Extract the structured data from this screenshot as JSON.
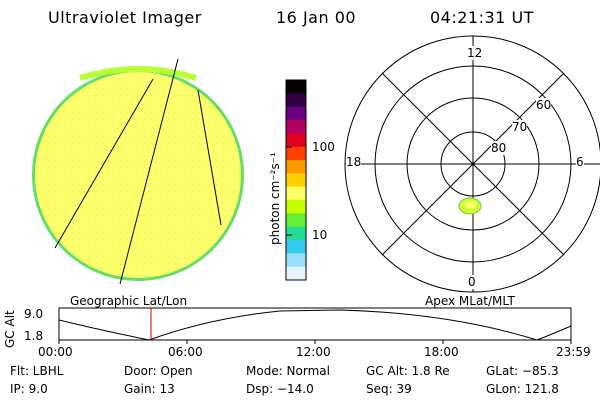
{
  "header": {
    "title": "Ultraviolet Imager",
    "date": "16 Jan 00",
    "time": "04:21:31 UT"
  },
  "colorbar": {
    "unit_label": "photon cm⁻²s⁻¹",
    "tick_100": "100",
    "tick_10": "10",
    "colors": [
      "#000000",
      "#300040",
      "#6a0080",
      "#b00060",
      "#e00020",
      "#ff4000",
      "#ff9900",
      "#ffd000",
      "#ffff66",
      "#c8ff00",
      "#66ee33",
      "#22dd99",
      "#33ccee",
      "#99ddff",
      "#e8f4ff"
    ]
  },
  "polar_plot": {
    "mlt_labels": {
      "top": "12",
      "right": "6",
      "left": "18",
      "bottom": "0"
    },
    "lat_labels": [
      "60",
      "70",
      "80"
    ]
  },
  "altitude_strip": {
    "left_title": "Geographic Lat/Lon",
    "right_title": "Apex MLat/MLT",
    "axis_title": "GC Alt",
    "y_ticks": [
      "9.0",
      "1.8"
    ],
    "x_ticks": [
      "00:00",
      "06:00",
      "12:00",
      "18:00",
      "23:59"
    ]
  },
  "footer": {
    "flt": "Flt: LBHL",
    "ip": "IP:  9.0",
    "door": "Door: Open",
    "gain": "Gain: 13",
    "mode": "Mode: Normal",
    "dsp": "Dsp:  −14.0",
    "gcalt": "GC Alt: 1.8 Re",
    "seq": "Seq: 39",
    "glat": "GLat: −85.3",
    "glon": "GLon: 121.8"
  }
}
